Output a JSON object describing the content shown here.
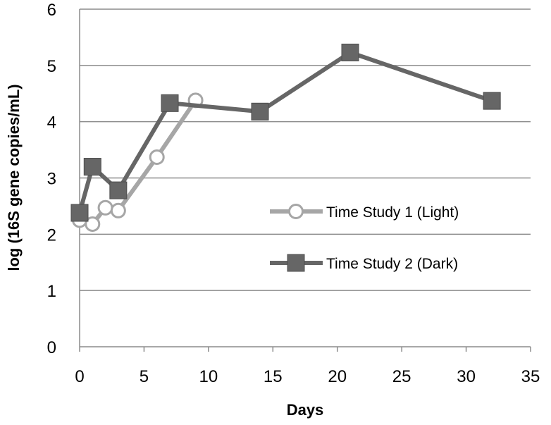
{
  "chart_data": {
    "type": "line",
    "title": "",
    "xlabel": "Days",
    "ylabel": "log (16S gene copies/mL)",
    "xlim": [
      0,
      35
    ],
    "ylim": [
      0,
      6
    ],
    "xticks": [
      0,
      5,
      10,
      15,
      20,
      25,
      30,
      35
    ],
    "yticks": [
      0,
      1,
      2,
      3,
      4,
      5,
      6
    ],
    "grid": "horizontal major gridlines",
    "legend_position": "right-middle",
    "series": [
      {
        "name": "Time Study 1  (Light)",
        "marker": "open-circle",
        "color": "#a6a6a6",
        "x": [
          0,
          1,
          2,
          3,
          6,
          9
        ],
        "y": [
          2.25,
          2.18,
          2.47,
          2.42,
          3.37,
          4.38
        ]
      },
      {
        "name": "Time Study 2 (Dark)",
        "marker": "filled-square",
        "color": "#666666",
        "x": [
          0,
          1,
          3,
          7,
          14,
          21,
          32
        ],
        "y": [
          2.38,
          3.2,
          2.78,
          4.33,
          4.18,
          5.23,
          4.37
        ]
      }
    ]
  }
}
